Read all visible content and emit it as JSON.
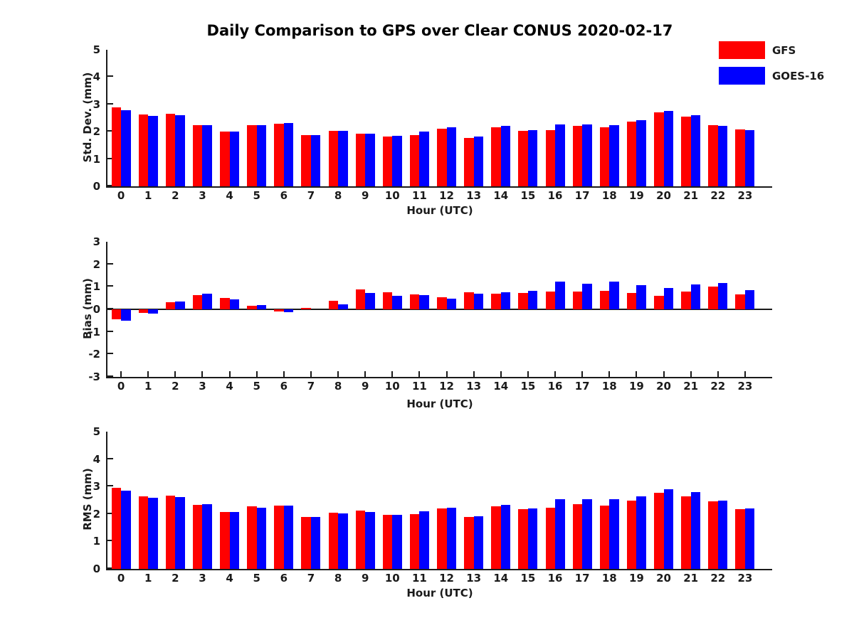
{
  "title": "Daily Comparison to GPS over Clear CONUS 2020-02-17",
  "legend": {
    "items": [
      {
        "label": "GFS",
        "color": "#ff0000"
      },
      {
        "label": "GOES-16",
        "color": "#0000ff"
      }
    ]
  },
  "chart_data": [
    {
      "id": "std-dev",
      "type": "bar",
      "ylabel": "Std. Dev. (mm)",
      "xlabel": "Hour (UTC)",
      "ylim": [
        0,
        5
      ],
      "yticks": [
        "0",
        "1",
        "2",
        "3",
        "4",
        "5"
      ],
      "grid": false,
      "categories": [
        "0",
        "1",
        "2",
        "3",
        "4",
        "5",
        "6",
        "7",
        "8",
        "9",
        "10",
        "11",
        "12",
        "13",
        "14",
        "15",
        "16",
        "17",
        "18",
        "19",
        "20",
        "21",
        "22",
        "23"
      ],
      "series": [
        {
          "name": "GFS",
          "color": "#ff0000",
          "values": [
            2.9,
            2.62,
            2.65,
            2.25,
            2.0,
            2.23,
            2.28,
            1.87,
            2.02,
            1.92,
            1.82,
            1.87,
            2.12,
            1.77,
            2.17,
            2.02,
            2.06,
            2.22,
            2.17,
            2.37,
            2.71,
            2.54,
            2.25,
            2.08
          ]
        },
        {
          "name": "GOES-16",
          "color": "#0000ff",
          "values": [
            2.78,
            2.57,
            2.6,
            2.25,
            2.0,
            2.23,
            2.31,
            1.87,
            2.02,
            1.94,
            1.84,
            2.0,
            2.16,
            1.81,
            2.21,
            2.06,
            2.27,
            2.27,
            2.25,
            2.42,
            2.77,
            2.6,
            2.22,
            2.06
          ]
        }
      ]
    },
    {
      "id": "bias",
      "type": "bar",
      "ylabel": "Bias (mm)",
      "xlabel": "Hour (UTC)",
      "ylim": [
        -3,
        3
      ],
      "yticks": [
        "3",
        "2",
        "1",
        "0",
        "-1",
        "-2",
        "-3"
      ],
      "zero_line": true,
      "grid": false,
      "categories": [
        "0",
        "1",
        "2",
        "3",
        "4",
        "5",
        "6",
        "7",
        "8",
        "9",
        "10",
        "11",
        "12",
        "13",
        "14",
        "15",
        "16",
        "17",
        "18",
        "19",
        "20",
        "21",
        "22",
        "23"
      ],
      "series": [
        {
          "name": "GFS",
          "color": "#ff0000",
          "values": [
            -0.45,
            -0.15,
            0.31,
            0.62,
            0.49,
            0.17,
            -0.1,
            0.05,
            0.37,
            0.88,
            0.75,
            0.66,
            0.54,
            0.77,
            0.68,
            0.72,
            0.79,
            0.79,
            0.82,
            0.74,
            0.59,
            0.79,
            1.02,
            0.67
          ]
        },
        {
          "name": "GOES-16",
          "color": "#0000ff",
          "values": [
            -0.5,
            -0.18,
            0.34,
            0.68,
            0.44,
            0.18,
            -0.14,
            0.0,
            0.21,
            0.73,
            0.59,
            0.63,
            0.46,
            0.69,
            0.77,
            0.82,
            1.22,
            1.14,
            1.22,
            1.07,
            0.96,
            1.1,
            1.18,
            0.86
          ]
        }
      ]
    },
    {
      "id": "rms",
      "type": "bar",
      "ylabel": "RMS (mm)",
      "xlabel": "Hour (UTC)",
      "ylim": [
        0,
        5
      ],
      "yticks": [
        "0",
        "1",
        "2",
        "3",
        "4",
        "5"
      ],
      "grid": false,
      "categories": [
        "0",
        "1",
        "2",
        "3",
        "4",
        "5",
        "6",
        "7",
        "8",
        "9",
        "10",
        "11",
        "12",
        "13",
        "14",
        "15",
        "16",
        "17",
        "18",
        "19",
        "20",
        "21",
        "22",
        "23"
      ],
      "series": [
        {
          "name": "GFS",
          "color": "#ff0000",
          "values": [
            2.95,
            2.64,
            2.66,
            2.33,
            2.07,
            2.27,
            2.31,
            1.9,
            2.05,
            2.13,
            1.96,
            2.0,
            2.2,
            1.9,
            2.28,
            2.17,
            2.22,
            2.35,
            2.3,
            2.48,
            2.76,
            2.64,
            2.47,
            2.18
          ]
        },
        {
          "name": "GOES-16",
          "color": "#0000ff",
          "values": [
            2.85,
            2.59,
            2.61,
            2.35,
            2.07,
            2.23,
            2.31,
            1.9,
            2.03,
            2.06,
            1.96,
            2.1,
            2.23,
            1.93,
            2.33,
            2.2,
            2.55,
            2.53,
            2.53,
            2.63,
            2.9,
            2.79,
            2.49,
            2.21
          ]
        }
      ]
    }
  ]
}
